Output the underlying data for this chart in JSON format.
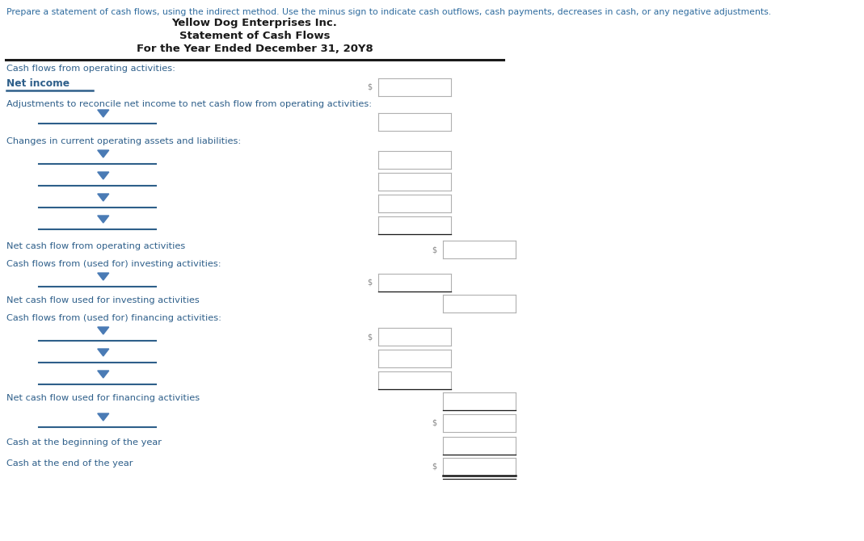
{
  "instruction_text": "Prepare a statement of cash flows, using the indirect method. Use the minus sign to indicate cash outflows, cash payments, decreases in cash, or any negative adjustments.",
  "company_name": "Yellow Dog Enterprises Inc.",
  "statement_title": "Statement of Cash Flows",
  "period": "For the Year Ended December 31, 20Y8",
  "blue_color": "#2E5F8A",
  "instruction_color": "#2E6B9E",
  "text_color_black": "#1a1a1a",
  "text_color_blue": "#2E5F8A",
  "bg_color": "#FFFFFF",
  "input_box_border": "#B0B0B0",
  "dropdown_color": "#4A7BB5",
  "dollar_color": "#888888",
  "header_line_color": "#000000",
  "fig_width": 10.69,
  "fig_height": 6.7,
  "dpi": 100,
  "inst_fontsize": 7.8,
  "header_fontsize": 9.5,
  "body_fontsize": 8.2,
  "netinc_fontsize": 8.8
}
